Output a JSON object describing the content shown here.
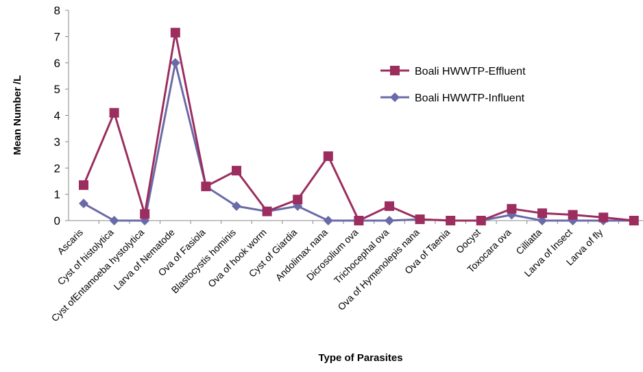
{
  "chart_data": {
    "type": "line",
    "x_label": "Type of Parasites",
    "y_label": "Mean Number /L",
    "categories": [
      "Ascaris",
      "Cyst of histolytica",
      "Cyst ofEntamoeba hystolytica",
      "Larva of Nematode",
      "Ova of Fasiola",
      "Blastocystis hominis",
      "Ova of hook worm",
      "Cyst of Giardia",
      "Andolimax nana",
      "Dicrosolium ova",
      "Trichocephal ova",
      "Ova of Hymenolepis nana",
      "Ova of Taenia",
      "Oocyst",
      "Toxocara ova",
      "Cilliatta",
      "Larva of Insect",
      "Larva of fly",
      null
    ],
    "series": [
      {
        "name": "Boali HWWTP-Effluent",
        "color": "#9b2d5f",
        "marker": "square",
        "values": [
          1.35,
          4.1,
          0.25,
          7.15,
          1.3,
          1.9,
          0.35,
          0.8,
          2.45,
          0,
          0.55,
          0.05,
          0,
          0,
          0.45,
          0.28,
          0.22,
          0.12,
          0
        ]
      },
      {
        "name": "Boali HWWTP-Influent",
        "color": "#6a6aa8",
        "marker": "diamond",
        "values": [
          0.65,
          0,
          0,
          6.0,
          1.3,
          0.55,
          0.35,
          0.55,
          0,
          0,
          0,
          0.05,
          0,
          0,
          0.22,
          0,
          0,
          0,
          0
        ]
      }
    ],
    "ylim": [
      0,
      8
    ],
    "yticks": [
      0,
      1,
      2,
      3,
      4,
      5,
      6,
      7,
      8
    ]
  }
}
